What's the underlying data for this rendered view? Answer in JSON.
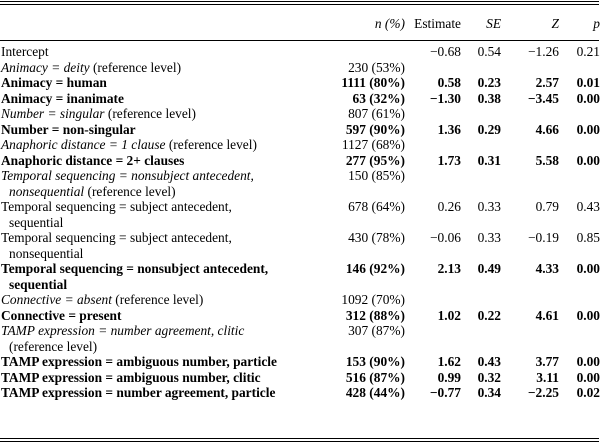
{
  "header": {
    "label": "",
    "n": "n (%)",
    "estimate": "Estimate",
    "se": "SE",
    "z": "Z",
    "p": "p"
  },
  "rows": [
    {
      "label_italic": "",
      "label": "Intercept",
      "n": "",
      "estimate": "−0.68",
      "se": "0.54",
      "z": "−1.26",
      "p": "0.21",
      "bold": false
    },
    {
      "label_italic": "Animacy = deity",
      "label": " (reference level)",
      "n": "230 (53%)",
      "estimate": "",
      "se": "",
      "z": "",
      "p": "",
      "bold": false
    },
    {
      "label_italic": "",
      "label": "Animacy = human",
      "n": "1111 (80%)",
      "estimate": "0.58",
      "se": "0.23",
      "z": "2.57",
      "p": "0.01",
      "bold": true
    },
    {
      "label_italic": "",
      "label": "Animacy = inanimate",
      "n": "63 (32%)",
      "estimate": "−1.30",
      "se": "0.38",
      "z": "−3.45",
      "p": "0.00",
      "bold": true
    },
    {
      "label_italic": "Number = singular",
      "label": " (reference level)",
      "n": "807 (61%)",
      "estimate": "",
      "se": "",
      "z": "",
      "p": "",
      "bold": false
    },
    {
      "label_italic": "",
      "label": "Number = non-singular",
      "n": "597 (90%)",
      "estimate": "1.36",
      "se": "0.29",
      "z": "4.66",
      "p": "0.00",
      "bold": true
    },
    {
      "label_italic": "Anaphoric distance = 1 clause",
      "label": " (reference level)",
      "n": "1127 (68%)",
      "estimate": "",
      "se": "",
      "z": "",
      "p": "",
      "bold": false
    },
    {
      "label_italic": "",
      "label": "Anaphoric distance = 2+ clauses",
      "n": "277 (95%)",
      "estimate": "1.73",
      "se": "0.31",
      "z": "5.58",
      "p": "0.00",
      "bold": true
    },
    {
      "label_italic": "Temporal sequencing = nonsubject antecedent,",
      "label": "",
      "line2_italic": "nonsequential",
      "line2": " (reference level)",
      "n": "150 (85%)",
      "estimate": "",
      "se": "",
      "z": "",
      "p": "",
      "bold": false
    },
    {
      "label_italic": "",
      "label": "Temporal sequencing = subject antecedent,",
      "line2_italic": "",
      "line2": "sequential",
      "n": "678 (64%)",
      "estimate": "0.26",
      "se": "0.33",
      "z": "0.79",
      "p": "0.43",
      "bold": false
    },
    {
      "label_italic": "",
      "label": "Temporal sequencing = subject antecedent,",
      "line2_italic": "",
      "line2": "nonsequential",
      "n": "430 (78%)",
      "estimate": "−0.06",
      "se": "0.33",
      "z": "−0.19",
      "p": "0.85",
      "bold": false
    },
    {
      "label_italic": "",
      "label": "Temporal sequencing = nonsubject antecedent,",
      "line2_italic": "",
      "line2": "sequential",
      "n": "146 (92%)",
      "estimate": "2.13",
      "se": "0.49",
      "z": "4.33",
      "p": "0.00",
      "bold": true
    },
    {
      "label_italic": "Connective = absent",
      "label": " (reference level)",
      "n": "1092 (70%)",
      "estimate": "",
      "se": "",
      "z": "",
      "p": "",
      "bold": false
    },
    {
      "label_italic": "",
      "label": "Connective = present",
      "n": "312 (88%)",
      "estimate": "1.02",
      "se": "0.22",
      "z": "4.61",
      "p": "0.00",
      "bold": true
    },
    {
      "label_italic": "TAMP expression = number agreement, clitic",
      "label": "",
      "line2_italic": "",
      "line2": "(reference level)",
      "n": "307 (87%)",
      "estimate": "",
      "se": "",
      "z": "",
      "p": "",
      "bold": false
    },
    {
      "label_italic": "",
      "label": "TAMP expression = ambiguous number, particle",
      "n": "153 (90%)",
      "estimate": "1.62",
      "se": "0.43",
      "z": "3.77",
      "p": "0.00",
      "bold": true
    },
    {
      "label_italic": "",
      "label": "TAMP expression = ambiguous number, clitic",
      "n": "516 (87%)",
      "estimate": "0.99",
      "se": "0.32",
      "z": "3.11",
      "p": "0.00",
      "bold": true
    },
    {
      "label_italic": "",
      "label": "TAMP expression = number agreement, particle",
      "n": "428 (44%)",
      "estimate": "−0.77",
      "se": "0.34",
      "z": "−2.25",
      "p": "0.02",
      "bold": true
    }
  ]
}
